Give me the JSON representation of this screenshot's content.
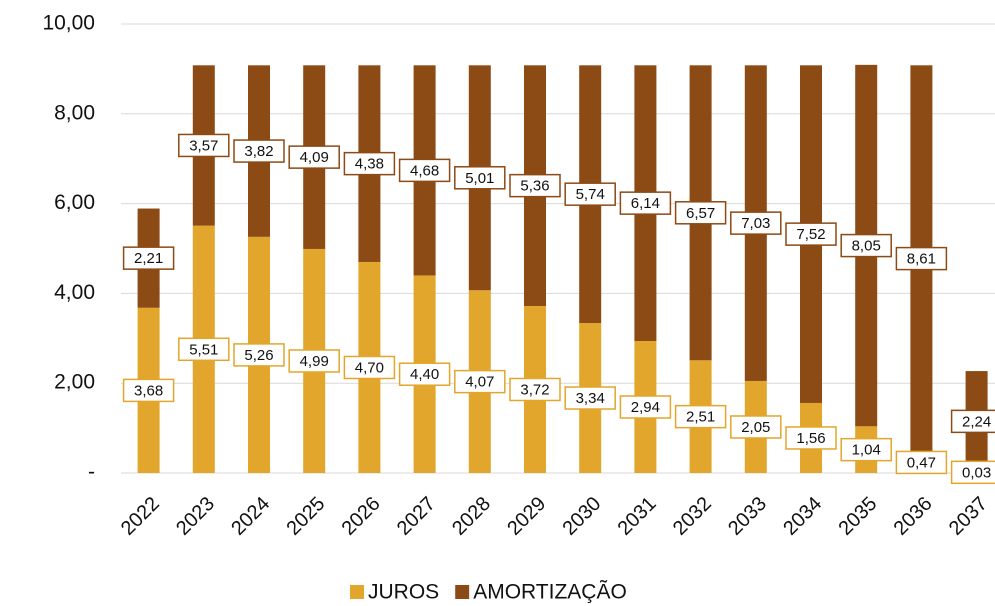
{
  "chart_data": {
    "type": "stacked_bar",
    "categories": [
      "2022",
      "2023",
      "2024",
      "2025",
      "2026",
      "2027",
      "2028",
      "2029",
      "2030",
      "2031",
      "2032",
      "2033",
      "2034",
      "2035",
      "2036",
      "2037"
    ],
    "series": [
      {
        "name": "JUROS",
        "color": "#e2a62c",
        "values": [
          3.68,
          5.51,
          5.26,
          4.99,
          4.7,
          4.4,
          4.07,
          3.72,
          3.34,
          2.94,
          2.51,
          2.05,
          1.56,
          1.04,
          0.47,
          0.03
        ],
        "value_labels": [
          "3,68",
          "5,51",
          "5,26",
          "4,99",
          "4,70",
          "4,40",
          "4,07",
          "3,72",
          "3,34",
          "2,94",
          "2,51",
          "2,05",
          "1,56",
          "1,04",
          "0,47",
          "0,03"
        ]
      },
      {
        "name": "AMORTIZAÇÃO",
        "color": "#8c4a15",
        "values": [
          2.21,
          3.57,
          3.82,
          4.09,
          4.38,
          4.68,
          5.01,
          5.36,
          5.74,
          6.14,
          6.57,
          7.03,
          7.52,
          8.05,
          8.61,
          2.24
        ],
        "value_labels": [
          "2,21",
          "3,57",
          "3,82",
          "4,09",
          "4,38",
          "4,68",
          "5,01",
          "5,36",
          "5,74",
          "6,14",
          "6,57",
          "7,03",
          "7,52",
          "8,05",
          "8,61",
          "2,24"
        ]
      }
    ],
    "ylim": [
      0,
      10
    ],
    "yticks": [
      {
        "value": 0,
        "label": "-"
      },
      {
        "value": 2,
        "label": "2,00"
      },
      {
        "value": 4,
        "label": "4,00"
      },
      {
        "value": 6,
        "label": "6,00"
      },
      {
        "value": 8,
        "label": "8,00"
      },
      {
        "value": 10,
        "label": "10,00"
      }
    ],
    "grid": true,
    "legend": "bottom"
  }
}
